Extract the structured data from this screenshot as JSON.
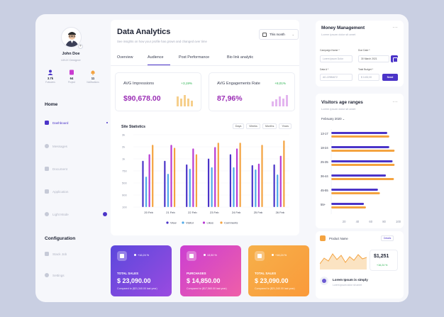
{
  "profile": {
    "name": "John Doe",
    "role": "UI/UX Designer",
    "stats": [
      {
        "value": "3.7k",
        "label": "Followers",
        "icon": "user-icon",
        "color": "#4b34c8"
      },
      {
        "value": "64",
        "label": "Project",
        "icon": "file-icon",
        "color": "#c93bd0"
      },
      {
        "value": "11",
        "label": "Notifications",
        "icon": "bell-icon",
        "color": "#f4a340"
      }
    ]
  },
  "sidebar": {
    "home_title": "Home",
    "items": [
      "Dashboard",
      "Messages",
      "Document",
      "Application",
      "Light Mode"
    ],
    "config_title": "Configuration",
    "config_items": [
      "Stack Job",
      "Settings"
    ]
  },
  "header": {
    "title": "Data Analytics",
    "subtitle": "See insights on how your profile has grown and changed over time",
    "filter": "This month"
  },
  "tabs": [
    "Overview",
    "Audience",
    "Post Performance",
    "Bio link analytic"
  ],
  "active_tab": 1,
  "metrics": [
    {
      "label": "AVG Impressions",
      "value": "$90,678.00",
      "change": "+3,19%"
    },
    {
      "label": "AVG Engagements Rate",
      "value": "87,96%",
      "change": "+8,01%"
    }
  ],
  "site_stats": {
    "title": "Site Statistics",
    "filters": [
      "Days",
      "Weeks",
      "Months",
      "Years"
    ]
  },
  "chart_data": {
    "type": "bar",
    "title": "Site Statistics",
    "categories": [
      "20 Feb",
      "21 Feb",
      "22 Feb",
      "23 Feb",
      "24 Feb",
      "25 Feb",
      "26 Feb"
    ],
    "y_ticks": [
      "3k",
      "2k",
      "1k",
      "750",
      "500",
      "900",
      "100"
    ],
    "series": [
      {
        "name": "View",
        "color": "#4b34c8",
        "values": [
          0.64,
          0.64,
          0.59,
          0.67,
          0.73,
          0.58,
          0.59
        ]
      },
      {
        "name": "Visitor",
        "color": "#4fa9e8",
        "values": [
          0.42,
          0.46,
          0.53,
          0.55,
          0.55,
          0.52,
          0.45
        ]
      },
      {
        "name": "Likes",
        "color": "#b83bd3",
        "values": [
          0.73,
          0.86,
          0.81,
          0.83,
          0.81,
          0.6,
          0.71
        ]
      },
      {
        "name": "Comments",
        "color": "#f4a340",
        "values": [
          0.86,
          0.82,
          0.73,
          0.89,
          0.89,
          0.86,
          0.92
        ]
      }
    ]
  },
  "stat_cards": [
    {
      "label": "TOTAL SALES",
      "value": "$ 23,090.00",
      "change": "+16,24 %",
      "compare": "Compared to ($21,340.00 last year)",
      "bg": "linear-gradient(135deg,#5b48dc,#9a4be0)"
    },
    {
      "label": "PURCHASES",
      "value": "$ 14,850.00",
      "change": "13,50 %",
      "compare": "Compared to ($17,560.00 last year)",
      "bg": "linear-gradient(135deg,#cb3fd2,#ef5fa8)"
    },
    {
      "label": "TOTAL SALES",
      "value": "$ 23,090.00",
      "change": "+16,24 %",
      "compare": "Compared to ($21,340.00 last year)",
      "bg": "linear-gradient(135deg,#f6b04a,#fa9a3a)"
    }
  ],
  "money": {
    "title": "Money Management",
    "subtitle": "Lorem ipsum dolor sit amet",
    "campaign_label": "Campaign Name *",
    "campaign_placeholder": "Lorem Ipsum Dolor",
    "due_label": "Due Date *",
    "due_value": "30 March 2021",
    "data_label": "Data A *",
    "data_value": "AD-22984672",
    "budget_label": "Total Budget *",
    "budget_value": "$ 1432,00",
    "send": "Send"
  },
  "visitors": {
    "title": "Visitors age ranges",
    "subtitle": "Lorem ipsum dolor sit amet",
    "month": "February 2020",
    "x_ticks": [
      "20",
      "40",
      "60",
      "80",
      "100"
    ]
  },
  "visitors_chart": {
    "type": "bar",
    "categories": [
      "13-17",
      "18-24",
      "25-35",
      "36-44",
      "45-55",
      "55+"
    ],
    "series": [
      {
        "color": "#4b34c8",
        "values": [
          84,
          87,
          92,
          82,
          70,
          49
        ]
      },
      {
        "color": "#f4a340",
        "values": [
          87,
          95,
          95,
          94,
          73,
          52
        ]
      }
    ],
    "xlim": [
      0,
      100
    ]
  },
  "product": {
    "name": "Product Name",
    "details": "Details",
    "price": "$1,251",
    "change": "+16,24 %",
    "learn_title": "Lorem Ipsum is simply",
    "learn_sub": "Lorem ipsum dolor sit amet"
  }
}
